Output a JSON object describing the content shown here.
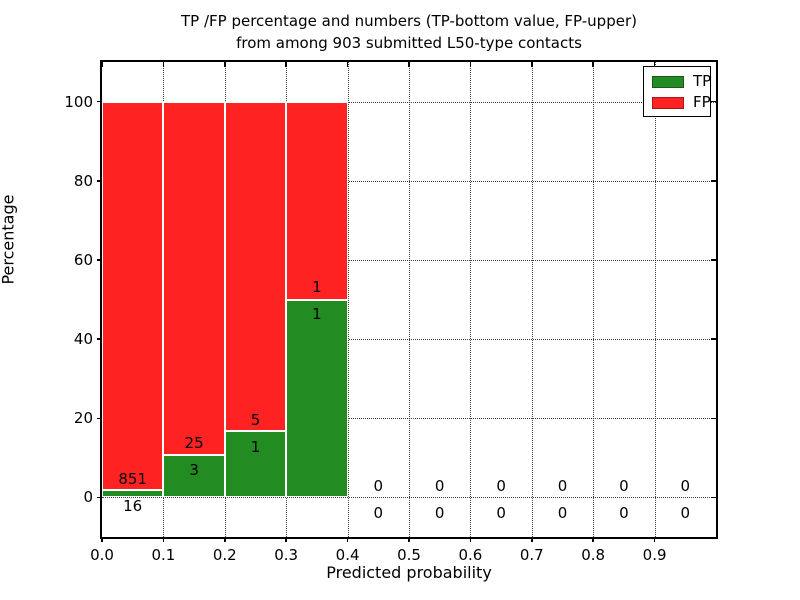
{
  "title": {
    "line1": "TP /FP percentage and numbers (TP-bottom value, FP-upper)",
    "line2": "from among 903 submitted L50-type contacts"
  },
  "axes": {
    "xlabel": "Predicted probability",
    "ylabel": "Percentage"
  },
  "legend": {
    "items": [
      {
        "label": "TP",
        "color": "#228B22"
      },
      {
        "label": "FP",
        "color": "#FF2222"
      }
    ]
  },
  "chart_data": {
    "type": "bar",
    "stacked": true,
    "normalized": "percent",
    "title": "TP /FP percentage and numbers (TP-bottom value, FP-upper) from among 903 submitted L50-type contacts",
    "xlabel": "Predicted probability",
    "ylabel": "Percentage",
    "total_contacts_shown_in_title": 903,
    "xlim": [
      0.0,
      1.0
    ],
    "ylim": [
      -10,
      110
    ],
    "x_tick_labels": [
      "0.0",
      "0.1",
      "0.2",
      "0.3",
      "0.4",
      "0.5",
      "0.6",
      "0.7",
      "0.8",
      "0.9"
    ],
    "y_tick_values": [
      0,
      20,
      40,
      60,
      80,
      100
    ],
    "grid": true,
    "legend_position": "upper right",
    "bin_width": 0.1,
    "bin_starts": [
      0.0,
      0.1,
      0.2,
      0.3,
      0.4,
      0.5,
      0.6,
      0.7,
      0.8,
      0.9
    ],
    "series": [
      {
        "name": "TP",
        "color": "#228B22",
        "counts": [
          16,
          3,
          1,
          1,
          0,
          0,
          0,
          0,
          0,
          0
        ]
      },
      {
        "name": "FP",
        "color": "#FF2222",
        "counts": [
          851,
          25,
          5,
          1,
          0,
          0,
          0,
          0,
          0,
          0
        ]
      }
    ],
    "tp_percent_of_bin": [
      1.85,
      10.71,
      16.67,
      50.0,
      0,
      0,
      0,
      0,
      0,
      0
    ],
    "fp_percent_of_bin": [
      98.15,
      89.29,
      83.33,
      50.0,
      0,
      0,
      0,
      0,
      0,
      0
    ]
  }
}
